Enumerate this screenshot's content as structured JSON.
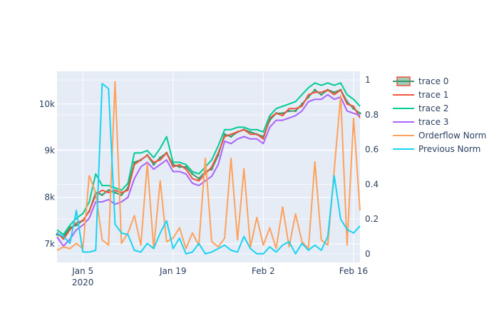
{
  "chart_data": {
    "type": "line",
    "title": "",
    "xlabel": "",
    "ylabel": "",
    "x_range": [
      "2020-01-01",
      "2020-02-17"
    ],
    "y_range_left": [
      6600,
      10700
    ],
    "y_range_right": [
      -0.05,
      1.05
    ],
    "grid": true,
    "legend_position": "top-right",
    "x_ticks": [
      {
        "date": "2020-01-05",
        "label": "Jan 5",
        "sublabel": "2020"
      },
      {
        "date": "2020-01-19",
        "label": "Jan 19",
        "sublabel": ""
      },
      {
        "date": "2020-02-02",
        "label": "Feb 2",
        "sublabel": ""
      },
      {
        "date": "2020-02-16",
        "label": "Feb 16",
        "sublabel": ""
      }
    ],
    "y_ticks_left": [
      {
        "value": 7000,
        "label": "7k"
      },
      {
        "value": 8000,
        "label": "8k"
      },
      {
        "value": 9000,
        "label": "9k"
      },
      {
        "value": 10000,
        "label": "10k"
      }
    ],
    "y_ticks_right": [
      {
        "value": 0,
        "label": "0"
      },
      {
        "value": 0.2,
        "label": "0.2"
      },
      {
        "value": 0.4,
        "label": "0.4"
      },
      {
        "value": 0.6,
        "label": "0.6"
      },
      {
        "value": 0.8,
        "label": "0.8"
      },
      {
        "value": 1,
        "label": "1"
      }
    ],
    "series": [
      {
        "name": "trace 0",
        "kind": "candlestick",
        "axis": "left",
        "color": "#3d9970",
        "fill": "#3d9970",
        "x": [
          "2020-01-01",
          "2020-01-02",
          "2020-01-03",
          "2020-01-04",
          "2020-01-05",
          "2020-01-06",
          "2020-01-07",
          "2020-01-08",
          "2020-01-09",
          "2020-01-10",
          "2020-01-11",
          "2020-01-12",
          "2020-01-13",
          "2020-01-14",
          "2020-01-15",
          "2020-01-16",
          "2020-01-17",
          "2020-01-18",
          "2020-01-19",
          "2020-01-20",
          "2020-01-21",
          "2020-01-22",
          "2020-01-23",
          "2020-01-24",
          "2020-01-25",
          "2020-01-26",
          "2020-01-27",
          "2020-01-28",
          "2020-01-29",
          "2020-01-30",
          "2020-01-31",
          "2020-02-01",
          "2020-02-02",
          "2020-02-03",
          "2020-02-04",
          "2020-02-05",
          "2020-02-06",
          "2020-02-07",
          "2020-02-08",
          "2020-02-09",
          "2020-02-10",
          "2020-02-11",
          "2020-02-12",
          "2020-02-13",
          "2020-02-14",
          "2020-02-15",
          "2020-02-16",
          "2020-02-17"
        ],
        "values": [
          7200,
          7150,
          7350,
          7400,
          7500,
          7700,
          8100,
          8050,
          8150,
          8100,
          8050,
          8200,
          8750,
          8800,
          8900,
          8700,
          8850,
          8950,
          8700,
          8650,
          8650,
          8500,
          8400,
          8550,
          8600,
          8900,
          9350,
          9300,
          9400,
          9450,
          9400,
          9350,
          9300,
          9650,
          9800,
          9800,
          9850,
          9850,
          10000,
          10150,
          10300,
          10200,
          10300,
          10250,
          10300,
          10050,
          9900,
          9800
        ]
      },
      {
        "name": "trace 1",
        "axis": "left",
        "color": "#ef553b",
        "x": [
          "2020-01-01",
          "2020-01-02",
          "2020-01-03",
          "2020-01-04",
          "2020-01-05",
          "2020-01-06",
          "2020-01-07",
          "2020-01-08",
          "2020-01-09",
          "2020-01-10",
          "2020-01-11",
          "2020-01-12",
          "2020-01-13",
          "2020-01-14",
          "2020-01-15",
          "2020-01-16",
          "2020-01-17",
          "2020-01-18",
          "2020-01-19",
          "2020-01-20",
          "2020-01-21",
          "2020-01-22",
          "2020-01-23",
          "2020-01-24",
          "2020-01-25",
          "2020-01-26",
          "2020-01-27",
          "2020-01-28",
          "2020-01-29",
          "2020-01-30",
          "2020-01-31",
          "2020-02-01",
          "2020-02-02",
          "2020-02-03",
          "2020-02-04",
          "2020-02-05",
          "2020-02-06",
          "2020-02-07",
          "2020-02-08",
          "2020-02-09",
          "2020-02-10",
          "2020-02-11",
          "2020-02-12",
          "2020-02-13",
          "2020-02-14",
          "2020-02-15",
          "2020-02-16",
          "2020-02-17"
        ],
        "values": [
          7250,
          7100,
          7300,
          7450,
          7500,
          7700,
          8050,
          8150,
          8100,
          8150,
          8100,
          8150,
          8700,
          8800,
          8900,
          8750,
          8800,
          8950,
          8650,
          8700,
          8600,
          8400,
          8350,
          8500,
          8650,
          8950,
          9300,
          9350,
          9400,
          9450,
          9350,
          9350,
          9250,
          9700,
          9800,
          9750,
          9900,
          9900,
          9950,
          10200,
          10250,
          10250,
          10300,
          10200,
          10300,
          10000,
          9950,
          9700
        ]
      },
      {
        "name": "trace 2",
        "axis": "left",
        "color": "#00cc96",
        "x": [
          "2020-01-01",
          "2020-01-02",
          "2020-01-03",
          "2020-01-04",
          "2020-01-05",
          "2020-01-06",
          "2020-01-07",
          "2020-01-08",
          "2020-01-09",
          "2020-01-10",
          "2020-01-11",
          "2020-01-12",
          "2020-01-13",
          "2020-01-14",
          "2020-01-15",
          "2020-01-16",
          "2020-01-17",
          "2020-01-18",
          "2020-01-19",
          "2020-01-20",
          "2020-01-21",
          "2020-01-22",
          "2020-01-23",
          "2020-01-24",
          "2020-01-25",
          "2020-01-26",
          "2020-01-27",
          "2020-01-28",
          "2020-01-29",
          "2020-01-30",
          "2020-01-31",
          "2020-02-01",
          "2020-02-02",
          "2020-02-03",
          "2020-02-04",
          "2020-02-05",
          "2020-02-06",
          "2020-02-07",
          "2020-02-08",
          "2020-02-09",
          "2020-02-10",
          "2020-02-11",
          "2020-02-12",
          "2020-02-13",
          "2020-02-14",
          "2020-02-15",
          "2020-02-16",
          "2020-02-17"
        ],
        "values": [
          7300,
          7200,
          7400,
          7550,
          7650,
          7900,
          8500,
          8250,
          8250,
          8200,
          8150,
          8300,
          8950,
          8950,
          9000,
          8850,
          9050,
          9300,
          8750,
          8750,
          8700,
          8550,
          8500,
          8650,
          8800,
          9100,
          9450,
          9450,
          9500,
          9500,
          9450,
          9450,
          9400,
          9750,
          9900,
          9950,
          10000,
          10050,
          10200,
          10350,
          10450,
          10400,
          10450,
          10400,
          10450,
          10200,
          10100,
          9950
        ]
      },
      {
        "name": "trace 3",
        "axis": "left",
        "color": "#ab63fa",
        "x": [
          "2020-01-01",
          "2020-01-02",
          "2020-01-03",
          "2020-01-04",
          "2020-01-05",
          "2020-01-06",
          "2020-01-07",
          "2020-01-08",
          "2020-01-09",
          "2020-01-10",
          "2020-01-11",
          "2020-01-12",
          "2020-01-13",
          "2020-01-14",
          "2020-01-15",
          "2020-01-16",
          "2020-01-17",
          "2020-01-18",
          "2020-01-19",
          "2020-01-20",
          "2020-01-21",
          "2020-01-22",
          "2020-01-23",
          "2020-01-24",
          "2020-01-25",
          "2020-01-26",
          "2020-01-27",
          "2020-01-28",
          "2020-01-29",
          "2020-01-30",
          "2020-01-31",
          "2020-02-01",
          "2020-02-02",
          "2020-02-03",
          "2020-02-04",
          "2020-02-05",
          "2020-02-06",
          "2020-02-07",
          "2020-02-08",
          "2020-02-09",
          "2020-02-10",
          "2020-02-11",
          "2020-02-12",
          "2020-02-13",
          "2020-02-14",
          "2020-02-15",
          "2020-02-16",
          "2020-02-17"
        ],
        "values": [
          7150,
          6950,
          7100,
          7300,
          7400,
          7550,
          7900,
          7900,
          7950,
          7850,
          7900,
          8000,
          8400,
          8650,
          8750,
          8600,
          8700,
          8800,
          8550,
          8550,
          8500,
          8300,
          8250,
          8350,
          8450,
          8700,
          9200,
          9150,
          9250,
          9300,
          9250,
          9250,
          9150,
          9500,
          9650,
          9650,
          9700,
          9750,
          9850,
          10050,
          10100,
          10100,
          10200,
          10100,
          10150,
          9850,
          9800,
          9750
        ]
      },
      {
        "name": "Orderflow Norm",
        "axis": "right",
        "color": "#ffa15a",
        "x": [
          "2020-01-01",
          "2020-01-02",
          "2020-01-03",
          "2020-01-04",
          "2020-01-05",
          "2020-01-06",
          "2020-01-07",
          "2020-01-08",
          "2020-01-09",
          "2020-01-10",
          "2020-01-11",
          "2020-01-12",
          "2020-01-13",
          "2020-01-14",
          "2020-01-15",
          "2020-01-16",
          "2020-01-17",
          "2020-01-18",
          "2020-01-19",
          "2020-01-20",
          "2020-01-21",
          "2020-01-22",
          "2020-01-23",
          "2020-01-24",
          "2020-01-25",
          "2020-01-26",
          "2020-01-27",
          "2020-01-28",
          "2020-01-29",
          "2020-01-30",
          "2020-01-31",
          "2020-02-01",
          "2020-02-02",
          "2020-02-03",
          "2020-02-04",
          "2020-02-05",
          "2020-02-06",
          "2020-02-07",
          "2020-02-08",
          "2020-02-09",
          "2020-02-10",
          "2020-02-11",
          "2020-02-12",
          "2020-02-13",
          "2020-02-14",
          "2020-02-15",
          "2020-02-16",
          "2020-02-17"
        ],
        "values": [
          0.02,
          0.04,
          0.03,
          0.06,
          0.03,
          0.45,
          0.35,
          0.08,
          0.05,
          0.99,
          0.06,
          0.12,
          0.22,
          0.05,
          0.52,
          0.03,
          0.42,
          0.07,
          0.09,
          0.15,
          0.03,
          0.12,
          0.05,
          0.55,
          0.07,
          0.04,
          0.09,
          0.55,
          0.08,
          0.49,
          0.04,
          0.21,
          0.05,
          0.15,
          0.03,
          0.27,
          0.04,
          0.23,
          0.07,
          0.03,
          0.53,
          0.08,
          0.05,
          0.48,
          0.91,
          0.05,
          0.78,
          0.25
        ]
      },
      {
        "name": "Previous Norm",
        "axis": "right",
        "color": "#19d3f3",
        "x": [
          "2020-01-01",
          "2020-01-02",
          "2020-01-03",
          "2020-01-04",
          "2020-01-05",
          "2020-01-06",
          "2020-01-07",
          "2020-01-08",
          "2020-01-09",
          "2020-01-10",
          "2020-01-11",
          "2020-01-12",
          "2020-01-13",
          "2020-01-14",
          "2020-01-15",
          "2020-01-16",
          "2020-01-17",
          "2020-01-18",
          "2020-01-19",
          "2020-01-20",
          "2020-01-21",
          "2020-01-22",
          "2020-01-23",
          "2020-01-24",
          "2020-01-25",
          "2020-01-26",
          "2020-01-27",
          "2020-01-28",
          "2020-01-29",
          "2020-01-30",
          "2020-01-31",
          "2020-02-01",
          "2020-02-02",
          "2020-02-03",
          "2020-02-04",
          "2020-02-05",
          "2020-02-06",
          "2020-02-07",
          "2020-02-08",
          "2020-02-09",
          "2020-02-10",
          "2020-02-11",
          "2020-02-12",
          "2020-02-13",
          "2020-02-14",
          "2020-02-15",
          "2020-02-16",
          "2020-02-17"
        ],
        "values": [
          0.12,
          0.1,
          0.06,
          0.25,
          0.01,
          0.01,
          0.02,
          0.98,
          0.95,
          0.17,
          0.12,
          0.11,
          0.02,
          0.01,
          0.06,
          0.03,
          0.12,
          0.19,
          0.03,
          0.09,
          0.0,
          0.01,
          0.06,
          0.0,
          0.01,
          0.03,
          0.05,
          0.02,
          0.01,
          0.1,
          0.03,
          0.0,
          0.0,
          0.04,
          0.01,
          0.05,
          0.07,
          0.0,
          0.06,
          0.02,
          0.05,
          0.02,
          0.1,
          0.45,
          0.2,
          0.14,
          0.12,
          0.16
        ]
      }
    ]
  }
}
